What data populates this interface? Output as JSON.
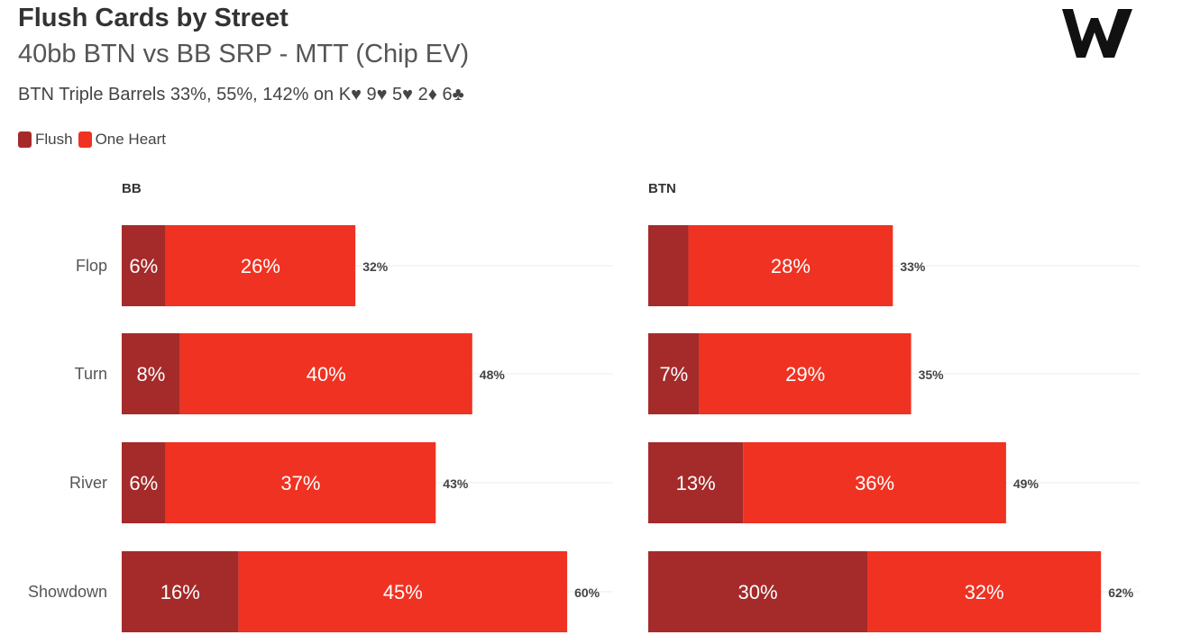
{
  "title": "Flush Cards by Street",
  "subtitle": "40bb BTN vs BB SRP - MTT (Chip EV)",
  "subtitle2": "BTN Triple Barrels 33%, 55%, 142% on K♥ 9♥ 5♥ 2♦ 6♣",
  "logo_text": "W",
  "colors": {
    "flush": "#a52a2a",
    "one_heart": "#f03222"
  },
  "legend": [
    {
      "label": "Flush",
      "color": "#a52a2a"
    },
    {
      "label": "One Heart",
      "color": "#f03222"
    }
  ],
  "chart_data": {
    "type": "bar",
    "orientation": "horizontal",
    "stacked": true,
    "categories": [
      "Flop",
      "Turn",
      "River",
      "Showdown"
    ],
    "panels": [
      {
        "name": "BB",
        "series": [
          {
            "name": "Flush",
            "values": [
              6,
              8,
              6,
              16
            ],
            "labels": [
              "6%",
              "8%",
              "6%",
              "16%"
            ]
          },
          {
            "name": "One Heart",
            "values": [
              26,
              40,
              37,
              45
            ],
            "labels": [
              "26%",
              "40%",
              "37%",
              "45%"
            ]
          }
        ],
        "totals": [
          "32%",
          "48%",
          "43%",
          "60%"
        ]
      },
      {
        "name": "BTN",
        "series": [
          {
            "name": "Flush",
            "values": [
              5.5,
              7,
              13,
              30
            ],
            "labels": [
              "",
              "7%",
              "13%",
              "30%"
            ]
          },
          {
            "name": "One Heart",
            "values": [
              28,
              29,
              36,
              32
            ],
            "labels": [
              "28%",
              "29%",
              "36%",
              "32%"
            ]
          }
        ],
        "totals": [
          "33%",
          "35%",
          "49%",
          "62%"
        ]
      }
    ],
    "xlim": [
      0,
      65
    ],
    "grid": true,
    "legend": "top-left"
  }
}
